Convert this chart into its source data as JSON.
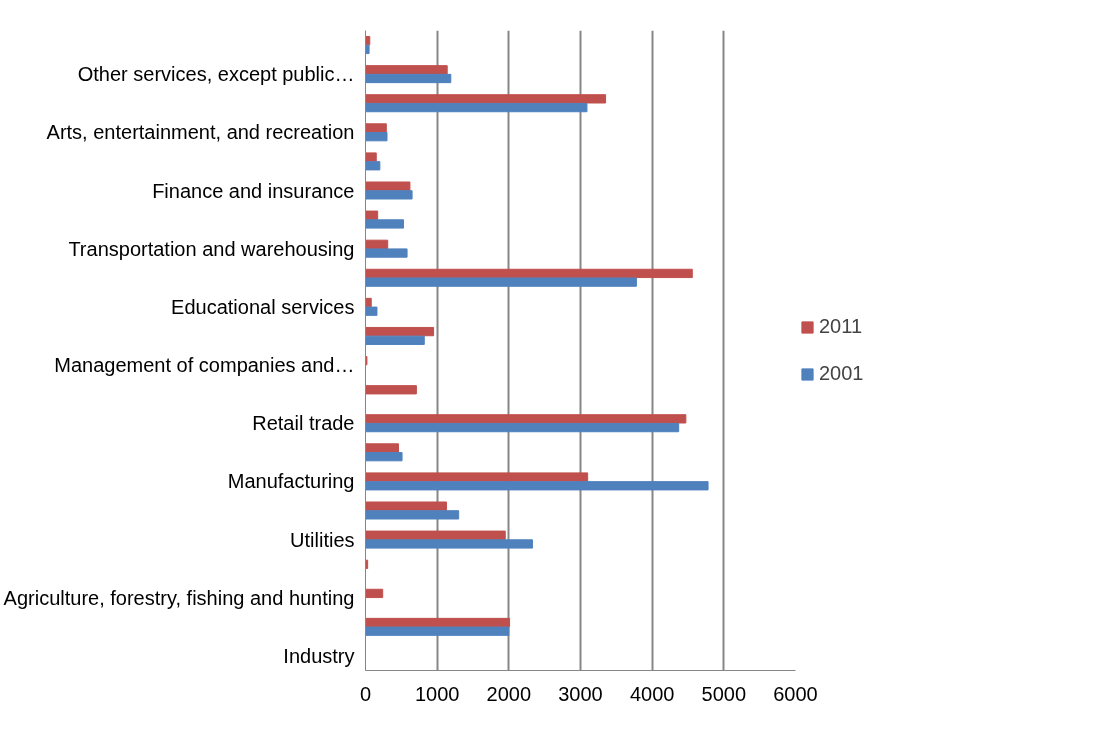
{
  "chart_data": {
    "type": "bar",
    "orientation": "horizontal",
    "categories": [
      null,
      "Other services, except public…",
      null,
      "Arts, entertainment, and recreation",
      null,
      "Finance and insurance",
      null,
      "Transportation and warehousing",
      null,
      "Educational services",
      null,
      "Management of companies and…",
      null,
      "Retail trade",
      null,
      "Manufacturing",
      null,
      "Utilities",
      null,
      "Agriculture, forestry, fishing and hunting",
      null,
      "Industry"
    ],
    "series": [
      {
        "name": "2011",
        "color": "#c0504d",
        "values": [
          60,
          1140,
          3350,
          290,
          150,
          620,
          170,
          310,
          4560,
          80,
          950,
          20,
          710,
          4470,
          460,
          3100,
          1130,
          1950,
          30,
          240,
          2010,
          null
        ]
      },
      {
        "name": "2001",
        "color": "#4f81bd",
        "values": [
          50,
          1190,
          3090,
          300,
          200,
          650,
          530,
          580,
          3780,
          160,
          820,
          null,
          null,
          4370,
          510,
          4780,
          1300,
          2330,
          null,
          null,
          2000,
          null
        ]
      }
    ],
    "xlim": [
      0,
      6000
    ],
    "xticks": [
      0,
      1000,
      2000,
      3000,
      4000,
      5000,
      6000
    ],
    "grid": "x",
    "legend": "right"
  }
}
